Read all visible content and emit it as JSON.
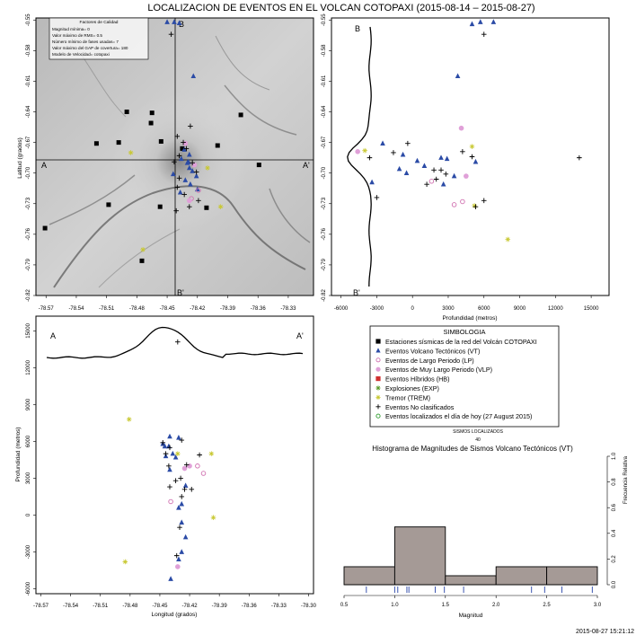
{
  "title": "LOCALIZACION DE EVENTOS EN EL VOLCAN COTOPAXI (2015-08-14 – 2015-08-27)",
  "timestamp": "2015-08-27 15:21:12",
  "quality_box": {
    "heading": "Factores de Calidad",
    "lines": [
      "Magnitud mínima= 0",
      "Valor máximo de RMS= 0.5",
      "Número mínimo de fases usadas= 7",
      "Valor máximo del GAP de covertura= 180",
      "Modelo de Velocidad= cotopaxi"
    ]
  },
  "legend": {
    "title": "SIMBOLOGIA",
    "items": [
      {
        "label": "Estaciones sísmicas de la red del Volcán COTOPAXI",
        "symbol": "square",
        "color": "#000000"
      },
      {
        "label": "Eventos Volcano Tectónicos (VT)",
        "symbol": "triangle",
        "color": "#2b4ba6"
      },
      {
        "label": "Eventos de Largo Periodo (LP)",
        "symbol": "circle-open",
        "color": "#d070b0"
      },
      {
        "label": "Eventos de Muy Largo Periodo (VLP)",
        "symbol": "circle",
        "color": "#e0a0d8"
      },
      {
        "label": "Eventos Híbridos (HB)",
        "symbol": "square",
        "color": "#d03030"
      },
      {
        "label": "Explosiones (EXP)",
        "symbol": "star",
        "color": "#5a9a2a"
      },
      {
        "label": "Tremor (TREM)",
        "symbol": "star",
        "color": "#c8c830"
      },
      {
        "label": "Eventos No clasificados",
        "symbol": "plus",
        "color": "#000000"
      },
      {
        "label": "Eventos localizados el día de hoy (27 August 2015)",
        "symbol": "circle-open",
        "color": "#2a9a2a"
      }
    ]
  },
  "counts": {
    "label": "SISMOS LOCALIZADOS",
    "value": "40"
  },
  "map": {
    "ylabel": "Latitud (grados)",
    "lon_ticks": [
      "-78.57",
      "-78.54",
      "-78.51",
      "-78.48",
      "-78.45",
      "-78.42",
      "-78.39",
      "-78.36",
      "-78.33"
    ],
    "lat_ticks": [
      "-0.55",
      "-0.58",
      "-0.61",
      "-0.64",
      "-0.67",
      "-0.70",
      "-0.73",
      "-0.76",
      "-0.79",
      "-0.82"
    ],
    "markers": {
      "A": "A",
      "A2": "A'",
      "B": "B",
      "B2": "B'"
    }
  },
  "section_ns": {
    "xlabel": "Profundidad (metros)",
    "x_ticks": [
      "-6000",
      "-3000",
      "0",
      "3000",
      "6000",
      "9000",
      "12000",
      "15000"
    ],
    "lat_ticks": [
      "-0.55",
      "-0.58",
      "-0.61",
      "-0.64",
      "-0.67",
      "-0.70",
      "-0.73",
      "-0.76",
      "-0.79",
      "-0.82"
    ],
    "markers": {
      "B": "B",
      "B2": "B'"
    }
  },
  "section_ew": {
    "xlabel": "Longitud (grados)",
    "ylabel": "Profundidad (metros)",
    "x_ticks": [
      "-78.57",
      "-78.54",
      "-78.51",
      "-78.48",
      "-78.45",
      "-78.42",
      "-78.39",
      "-78.36",
      "-78.33",
      "-78.30"
    ],
    "y_ticks": [
      "-6000",
      "-3000",
      "0",
      "3000",
      "6000",
      "9000",
      "12000",
      "15000"
    ],
    "markers": {
      "A": "A",
      "A2": "A'"
    }
  },
  "histogram": {
    "title": "Histograma de Magnitudes de Sismos Volcano Tectónicos (VT)",
    "xlabel": "Magnitud",
    "ylabel": "Frecuencia Relativa",
    "x_ticks": [
      "0.5",
      "1.0",
      "1.5",
      "2.0",
      "2.5",
      "3.0"
    ],
    "y_ticks": [
      "0.0",
      "0.2",
      "0.4",
      "0.6",
      "0.8",
      "1.0"
    ]
  },
  "colors": {
    "vt": "#2b4ba6",
    "lp": "#d070b0",
    "vlp": "#e0a0d8",
    "trem": "#c8c830",
    "station": "#000000",
    "bar": "#a59a96",
    "rug": "#3b55b0"
  },
  "chart_data": [
    {
      "type": "scatter",
      "panel": "map",
      "xlabel": "",
      "ylabel": "Latitud (grados)",
      "xlim": [
        -78.58,
        -78.305
      ],
      "ylim": [
        -0.82,
        -0.548
      ],
      "grid": false,
      "series": [
        {
          "name": "Estaciones sísmicas de la red del Volcán COTOPAXI",
          "marker": "square",
          "x": [
            -78.49,
            -78.465,
            -78.52,
            -78.498,
            -78.456,
            -78.435,
            -78.377,
            -78.466,
            -78.411,
            -78.508,
            -78.571,
            -78.475,
            -78.457,
            -78.4,
            -78.359
          ],
          "y": [
            -0.64,
            -0.641,
            -0.671,
            -0.67,
            -0.669,
            -0.676,
            -0.643,
            -0.651,
            -0.734,
            -0.731,
            -0.754,
            -0.786,
            -0.733,
            -0.673,
            -0.692
          ]
        },
        {
          "name": "Eventos Volcano Tectónicos (VT)",
          "marker": "triangle",
          "x": [
            -78.45,
            -78.443,
            -78.438,
            -78.424,
            -78.433,
            -78.428,
            -78.436,
            -78.43,
            -78.428,
            -78.425,
            -78.421,
            -78.432,
            -78.427,
            -78.42,
            -78.437,
            -78.429,
            -78.444
          ],
          "y": [
            -0.552,
            -0.552,
            -0.553,
            -0.605,
            -0.677,
            -0.682,
            -0.686,
            -0.69,
            -0.695,
            -0.698,
            -0.703,
            -0.707,
            -0.711,
            -0.716,
            -0.719,
            -0.689,
            -0.701
          ]
        },
        {
          "name": "Eventos de Largo Periodo (LP)",
          "marker": "circle-open",
          "x": [
            -78.426,
            -78.419
          ],
          "y": [
            -0.725,
            -0.717
          ]
        },
        {
          "name": "Eventos de Muy Largo Periodo (VLP)",
          "marker": "circle",
          "x": [
            -78.432,
            -78.423,
            -78.428
          ],
          "y": [
            -0.671,
            -0.692,
            -0.727
          ]
        },
        {
          "name": "Tremor (TREM)",
          "marker": "star",
          "x": [
            -78.486,
            -78.41,
            -78.397,
            -78.474
          ],
          "y": [
            -0.68,
            -0.695,
            -0.733,
            -0.775
          ]
        },
        {
          "name": "Eventos No clasificados",
          "marker": "plus",
          "x": [
            -78.446,
            -78.427,
            -78.44,
            -78.434,
            -78.431,
            -78.438,
            -78.443,
            -78.425,
            -78.421,
            -78.438,
            -78.44,
            -78.433,
            -78.419,
            -78.428,
            -78.441
          ],
          "y": [
            -0.564,
            -0.654,
            -0.664,
            -0.67,
            -0.676,
            -0.683,
            -0.689,
            -0.69,
            -0.699,
            -0.705,
            -0.714,
            -0.721,
            -0.727,
            -0.733,
            -0.737
          ]
        }
      ]
    },
    {
      "type": "scatter",
      "panel": "section_ns",
      "xlabel": "Profundidad (metros)",
      "ylabel": "",
      "xlim": [
        -6800,
        16500
      ],
      "ylim": [
        -0.82,
        -0.548
      ],
      "series": [
        {
          "name": "Eventos Volcano Tectónicos (VT)",
          "marker": "triangle",
          "x": [
            5000,
            5700,
            6800,
            3800,
            -2500,
            -800,
            400,
            -1100,
            1000,
            2400,
            2900,
            5300,
            -3400,
            2600,
            -500,
            3500
          ],
          "y": [
            -0.554,
            -0.552,
            -0.552,
            -0.605,
            -0.671,
            -0.682,
            -0.688,
            -0.696,
            -0.693,
            -0.685,
            -0.686,
            -0.689,
            -0.709,
            -0.711,
            -0.7,
            -0.703
          ]
        },
        {
          "name": "Eventos de Largo Periodo (LP)",
          "marker": "circle-open",
          "x": [
            1600,
            3500,
            4200
          ],
          "y": [
            -0.708,
            -0.731,
            -0.728
          ]
        },
        {
          "name": "Eventos de Muy Largo Periodo (VLP)",
          "marker": "circle",
          "x": [
            4100,
            -4600,
            4500
          ],
          "y": [
            -0.656,
            -0.679,
            -0.703
          ]
        },
        {
          "name": "Tremor (TREM)",
          "marker": "star",
          "x": [
            -4000,
            5000,
            5200,
            8000
          ],
          "y": [
            -0.678,
            -0.674,
            -0.732,
            -0.765
          ]
        },
        {
          "name": "Eventos No clasificados",
          "marker": "plus",
          "x": [
            6000,
            -3600,
            -1600,
            -400,
            1200,
            2000,
            2800,
            4200,
            5000,
            5300,
            -3000,
            1800,
            2400,
            6000,
            14000
          ],
          "y": [
            -0.564,
            -0.685,
            -0.68,
            -0.671,
            -0.711,
            -0.706,
            -0.701,
            -0.679,
            -0.684,
            -0.733,
            -0.724,
            -0.697,
            -0.697,
            -0.727,
            -0.685
          ]
        }
      ]
    },
    {
      "type": "scatter",
      "panel": "section_ew",
      "xlabel": "Longitud (grados)",
      "ylabel": "Profundidad (metros)",
      "xlim": [
        -78.575,
        -78.295
      ],
      "ylim": [
        -6400,
        16200
      ],
      "series": [
        {
          "name": "Eventos Volcano Tectónicos (VT)",
          "marker": "triangle",
          "x": [
            -78.439,
            -78.431,
            -78.428,
            -78.424,
            -78.428,
            -78.431,
            -78.428,
            -78.424,
            -78.44,
            -78.434,
            -78.444,
            -78.437,
            -78.445,
            -78.447,
            -78.44,
            -78.431,
            -78.441
          ],
          "y": [
            -5200,
            -3600,
            -3000,
            -1800,
            -600,
            600,
            900,
            2400,
            3700,
            4700,
            4800,
            5000,
            5600,
            5800,
            6400,
            6300,
            5600
          ]
        },
        {
          "name": "Eventos de Largo Periodo (LP)",
          "marker": "circle-open",
          "x": [
            -78.439,
            -78.412,
            -78.406
          ],
          "y": [
            1100,
            4000,
            3400
          ]
        },
        {
          "name": "Eventos de Muy Largo Periodo (VLP)",
          "marker": "circle",
          "x": [
            -78.432,
            -78.42,
            -78.425
          ],
          "y": [
            -4200,
            4000,
            3800
          ]
        },
        {
          "name": "Tremor (TREM)",
          "marker": "star",
          "x": [
            -78.485,
            -78.396,
            -78.432,
            -78.398,
            -78.481
          ],
          "y": [
            -3800,
            -200,
            5000,
            5000,
            7800
          ]
        },
        {
          "name": "Eventos No clasificados",
          "marker": "plus",
          "x": [
            -78.433,
            -78.43,
            -78.428,
            -78.425,
            -78.44,
            -78.434,
            -78.418,
            -78.441,
            -78.423,
            -78.41,
            -78.444,
            -78.447,
            -78.44,
            -78.428,
            -78.429,
            -78.432
          ],
          "y": [
            -3300,
            -1000,
            1500,
            2100,
            2300,
            2800,
            2100,
            4000,
            4100,
            4900,
            5000,
            5900,
            5500,
            6100,
            3000,
            14100
          ]
        }
      ]
    },
    {
      "type": "bar",
      "panel": "histogram",
      "title": "Histograma de Magnitudes de Sismos Volcano Tectónicos (VT)",
      "xlabel": "Magnitud",
      "ylabel": "Frecuencia Relativa",
      "xlim": [
        0.5,
        3.0
      ],
      "ylim": [
        0,
        1.0
      ],
      "bins": [
        [
          0.5,
          1.0
        ],
        [
          1.0,
          1.5
        ],
        [
          1.5,
          2.0
        ],
        [
          2.0,
          2.5
        ],
        [
          2.5,
          3.0
        ]
      ],
      "values": [
        0.14,
        0.45,
        0.07,
        0.14,
        0.14
      ],
      "rug": [
        0.72,
        1.0,
        1.03,
        1.12,
        1.14,
        1.4,
        1.49,
        1.68,
        2.35,
        2.48,
        2.65,
        2.95
      ]
    }
  ]
}
